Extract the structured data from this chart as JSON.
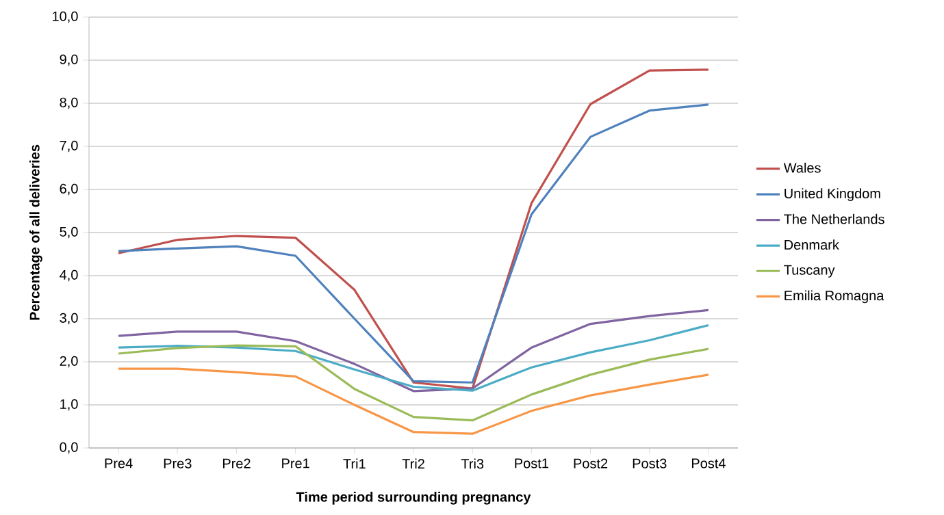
{
  "chart_data": {
    "type": "line",
    "xlabel": "Time period surrounding pregnancy",
    "ylabel": "Percentage of all deliveries",
    "categories": [
      "Pre4",
      "Pre3",
      "Pre2",
      "Pre1",
      "Tri1",
      "Tri2",
      "Tri3",
      "Post1",
      "Post2",
      "Post3",
      "Post4"
    ],
    "series": [
      {
        "name": "Wales",
        "color": "#c0504d",
        "values": [
          4.52,
          4.83,
          4.92,
          4.88,
          3.67,
          1.52,
          1.38,
          5.68,
          7.98,
          8.76,
          8.78
        ]
      },
      {
        "name": "United Kingdom",
        "color": "#4f81bd",
        "values": [
          4.57,
          4.63,
          4.68,
          4.46,
          3.0,
          1.55,
          1.52,
          5.42,
          7.22,
          7.83,
          7.97
        ]
      },
      {
        "name": "The Netherlands",
        "color": "#8064a2",
        "values": [
          2.6,
          2.7,
          2.7,
          2.48,
          1.95,
          1.32,
          1.38,
          2.33,
          2.88,
          3.06,
          3.2
        ]
      },
      {
        "name": "Denmark",
        "color": "#4bacc6",
        "values": [
          2.33,
          2.37,
          2.33,
          2.25,
          1.82,
          1.42,
          1.33,
          1.87,
          2.22,
          2.5,
          2.85
        ]
      },
      {
        "name": "Tuscany",
        "color": "#9bbb59",
        "values": [
          2.19,
          2.32,
          2.38,
          2.36,
          1.37,
          0.72,
          0.64,
          1.24,
          1.7,
          2.05,
          2.3
        ]
      },
      {
        "name": "Emilia Romagna",
        "color": "#f79646",
        "values": [
          1.84,
          1.84,
          1.76,
          1.66,
          1.0,
          0.37,
          0.33,
          0.86,
          1.22,
          1.47,
          1.7
        ]
      }
    ],
    "ylim": [
      0,
      10
    ],
    "yticks": [
      {
        "value": 0,
        "label": "0,0"
      },
      {
        "value": 1,
        "label": "1,0"
      },
      {
        "value": 2,
        "label": "2,0"
      },
      {
        "value": 3,
        "label": "3,0"
      },
      {
        "value": 4,
        "label": "4,0"
      },
      {
        "value": 5,
        "label": "5,0"
      },
      {
        "value": 6,
        "label": "6,0"
      },
      {
        "value": 7,
        "label": "7,0"
      },
      {
        "value": 8,
        "label": "8,0"
      },
      {
        "value": 9,
        "label": "9,0"
      },
      {
        "value": 10,
        "label": "10,0"
      }
    ],
    "grid": "y",
    "legend": "right",
    "marker": "none",
    "line_style": "solid"
  }
}
